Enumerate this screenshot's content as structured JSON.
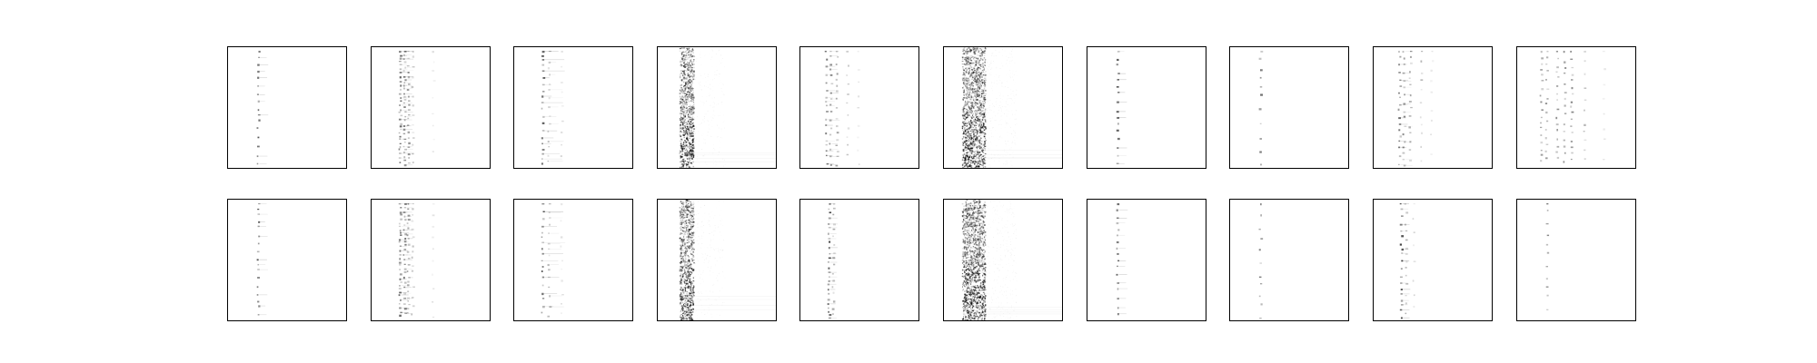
{
  "figure": {
    "description": "",
    "background": "#ffffff",
    "ink_color": "#000000",
    "rows": 2,
    "columns": 10,
    "panels": [
      {
        "row": 0,
        "col": 0,
        "pattern": "single-column-sparse-dots"
      },
      {
        "row": 0,
        "col": 1,
        "pattern": "multi-column-dense-dots"
      },
      {
        "row": 0,
        "col": 2,
        "pattern": "left-column-with-short-streaks"
      },
      {
        "row": 0,
        "col": 3,
        "pattern": "noisy-vertical-band"
      },
      {
        "row": 0,
        "col": 4,
        "pattern": "multi-column-dots"
      },
      {
        "row": 0,
        "col": 5,
        "pattern": "wide-noisy-vertical-band"
      },
      {
        "row": 0,
        "col": 6,
        "pattern": "single-column-sparse-dots"
      },
      {
        "row": 0,
        "col": 7,
        "pattern": "single-column-very-sparse-dots"
      },
      {
        "row": 0,
        "col": 8,
        "pattern": "multi-column-dots"
      },
      {
        "row": 0,
        "col": 9,
        "pattern": "many-column-scattered-dots"
      },
      {
        "row": 1,
        "col": 0,
        "pattern": "single-column-sparse-dots"
      },
      {
        "row": 1,
        "col": 1,
        "pattern": "multi-column-dense-dots"
      },
      {
        "row": 1,
        "col": 2,
        "pattern": "left-column-with-short-streaks"
      },
      {
        "row": 1,
        "col": 3,
        "pattern": "noisy-vertical-band"
      },
      {
        "row": 1,
        "col": 4,
        "pattern": "left-column-dense-dots"
      },
      {
        "row": 1,
        "col": 5,
        "pattern": "wide-noisy-vertical-band"
      },
      {
        "row": 1,
        "col": 6,
        "pattern": "single-column-sparse-dots"
      },
      {
        "row": 1,
        "col": 7,
        "pattern": "single-column-very-sparse-dots"
      },
      {
        "row": 1,
        "col": 8,
        "pattern": "left-column-dots"
      },
      {
        "row": 1,
        "col": 9,
        "pattern": "single-column-very-sparse-dots"
      }
    ]
  }
}
